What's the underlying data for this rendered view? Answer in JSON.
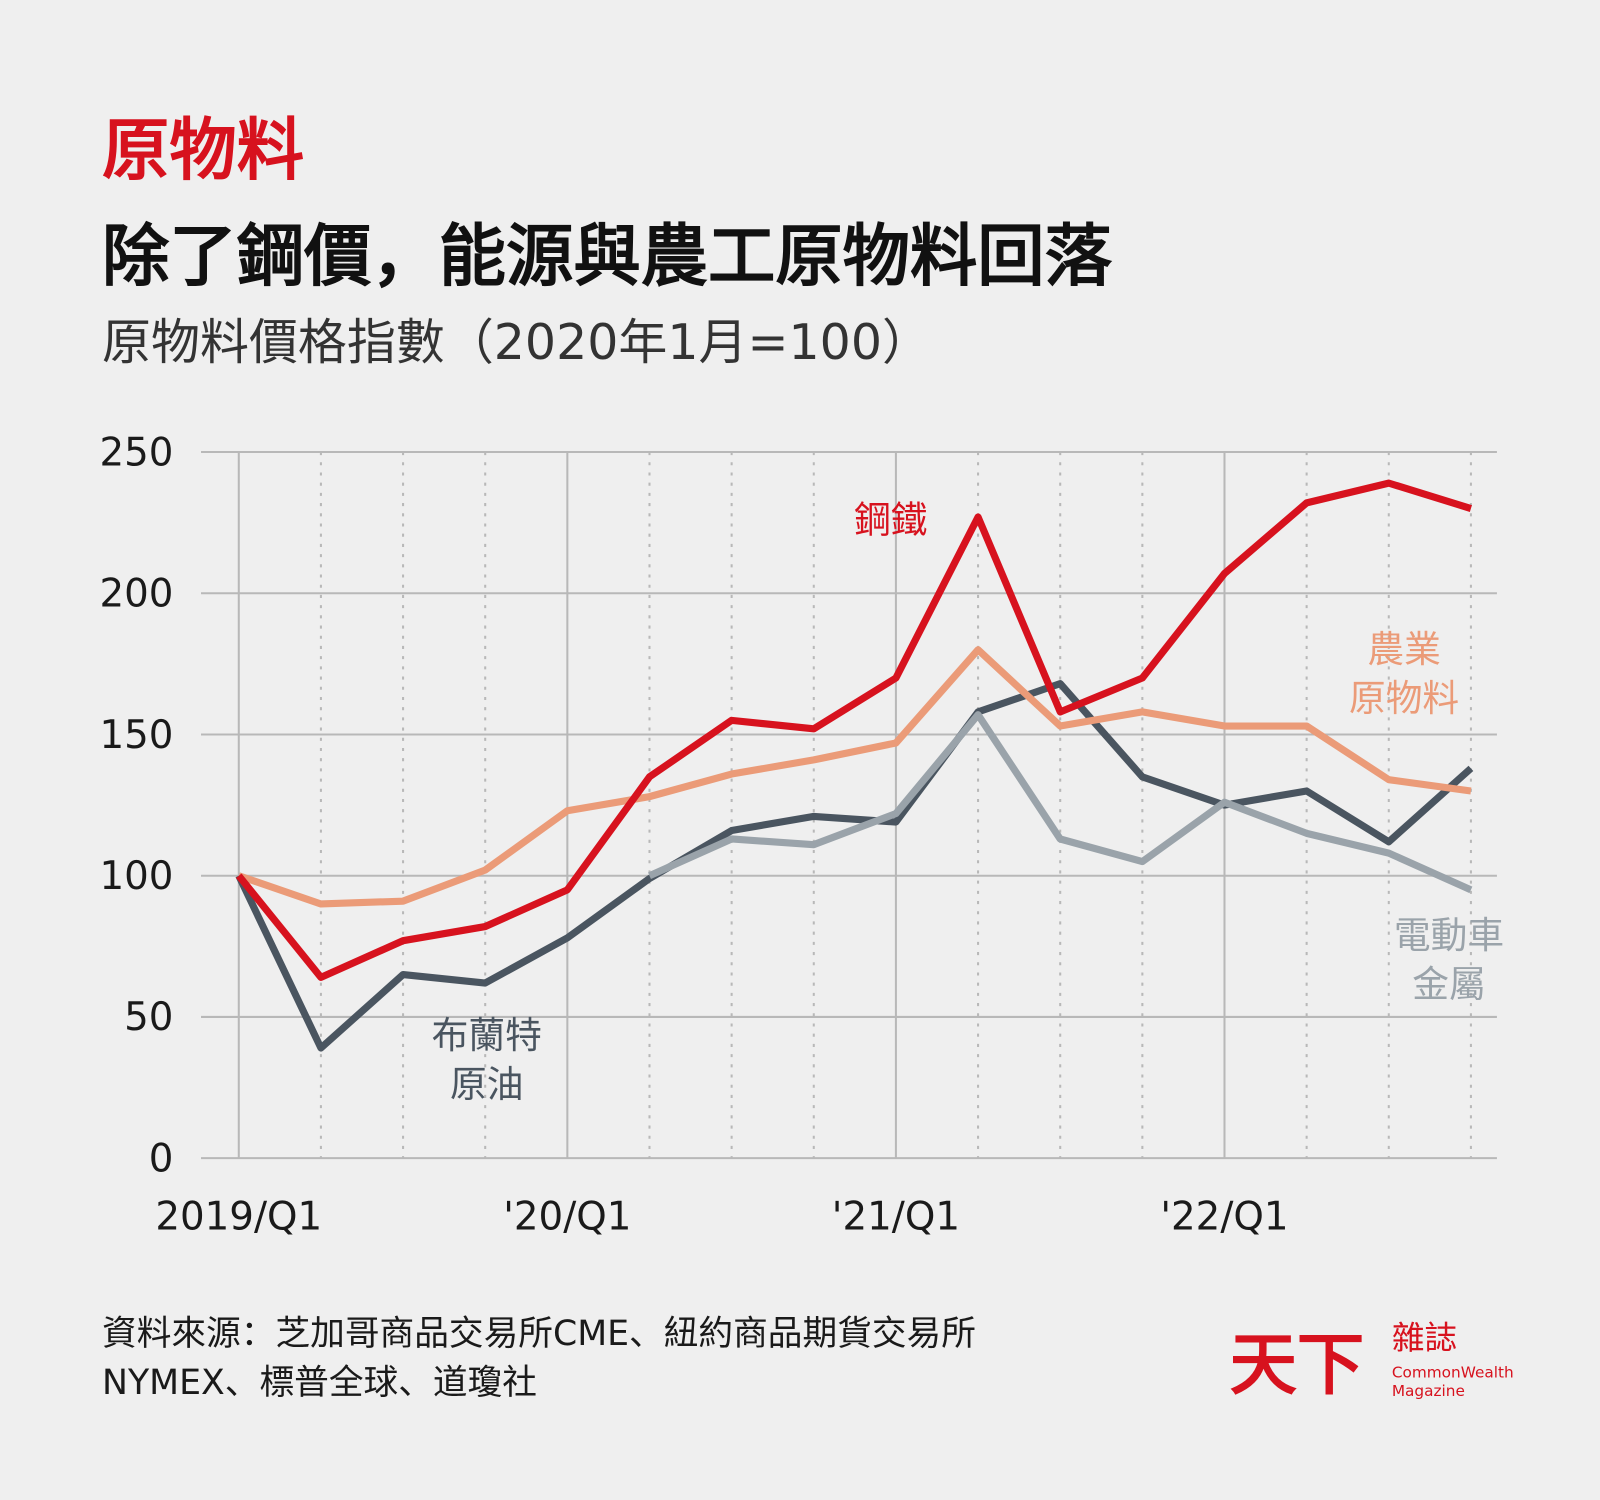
{
  "chart_data": {
    "type": "line",
    "kicker": "原物料",
    "title": "除了鋼價，能源與農工原物料回落",
    "subtitle": "原物料價格指數（2020年1月=100）",
    "categories": [
      "2019/Q1",
      null,
      null,
      null,
      "'20/Q1",
      null,
      null,
      null,
      "'21/Q1",
      null,
      null,
      null,
      "'22/Q1",
      null,
      null,
      null
    ],
    "series": [
      {
        "name": "布蘭特\n原油",
        "color": "#4a5560",
        "values": [
          100,
          39,
          65,
          62,
          78,
          99,
          116,
          121,
          119,
          158,
          168,
          135,
          125,
          130,
          112,
          138
        ]
      },
      {
        "name": "電動車\n金屬",
        "color": "#9aa3aa",
        "values": [
          null,
          null,
          null,
          null,
          null,
          100,
          113,
          111,
          122,
          157,
          113,
          105,
          126,
          115,
          108,
          95
        ]
      },
      {
        "name": "農業\n原物料",
        "color": "#eb9b78",
        "values": [
          100,
          90,
          91,
          102,
          123,
          128,
          136,
          141,
          147,
          180,
          153,
          158,
          153,
          153,
          134,
          130
        ]
      },
      {
        "name": "鋼鐵",
        "color": "#d7121e",
        "values": [
          100,
          64,
          77,
          82,
          95,
          135,
          155,
          152,
          170,
          227,
          158,
          170,
          207,
          232,
          239,
          230
        ]
      }
    ],
    "ylim": [
      0,
      250
    ],
    "yticks": [
      0,
      50,
      100,
      150,
      200,
      250
    ],
    "grid": true,
    "source": [
      "資料來源：芝加哥商品交易所CME、紐約商品期貨交易所",
      "NYMEX、標普全球、道瓊社"
    ],
    "logo": {
      "main": "天下",
      "sub": "雜誌",
      "en1": "CommonWealth",
      "en2": "Magazine"
    }
  }
}
